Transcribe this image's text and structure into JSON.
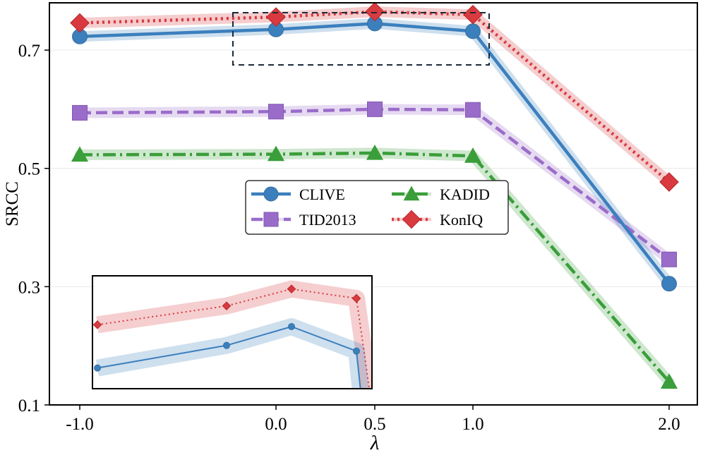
{
  "chart_data": {
    "type": "line",
    "xlabel": "λ",
    "ylabel": "SRCC",
    "x_ticks": [
      "-1.0",
      "0.0",
      "0.5",
      "1.0",
      "2.0"
    ],
    "y_ticks": [
      "0.1",
      "0.3",
      "0.5",
      "0.7"
    ],
    "y_tick_values": [
      0.1,
      0.3,
      0.5,
      0.7
    ],
    "ylim": [
      0.1,
      0.78
    ],
    "grid": true,
    "legend_position": "center",
    "series": [
      {
        "name": "CLIVE",
        "values": [
          0.723,
          0.735,
          0.745,
          0.732,
          0.305
        ],
        "color": "#3b7fbd",
        "marker": "circle",
        "line": "solid"
      },
      {
        "name": "TID2013",
        "values": [
          0.594,
          0.596,
          0.6,
          0.599,
          0.346
        ],
        "color": "#9a6cc9",
        "marker": "square",
        "line": "dashed"
      },
      {
        "name": "KADID",
        "values": [
          0.523,
          0.524,
          0.526,
          0.521,
          0.139
        ],
        "color": "#3a9e3a",
        "marker": "triangle",
        "line": "dashdot"
      },
      {
        "name": "KonIQ",
        "values": [
          0.746,
          0.756,
          0.765,
          0.76,
          0.477
        ],
        "color": "#d83a3f",
        "marker": "diamond",
        "line": "dotted"
      }
    ],
    "inset": {
      "description": "zoom of CLIVE and KonIQ over λ from -1.0 to 1.0",
      "series": [
        "KonIQ",
        "CLIVE"
      ]
    }
  }
}
